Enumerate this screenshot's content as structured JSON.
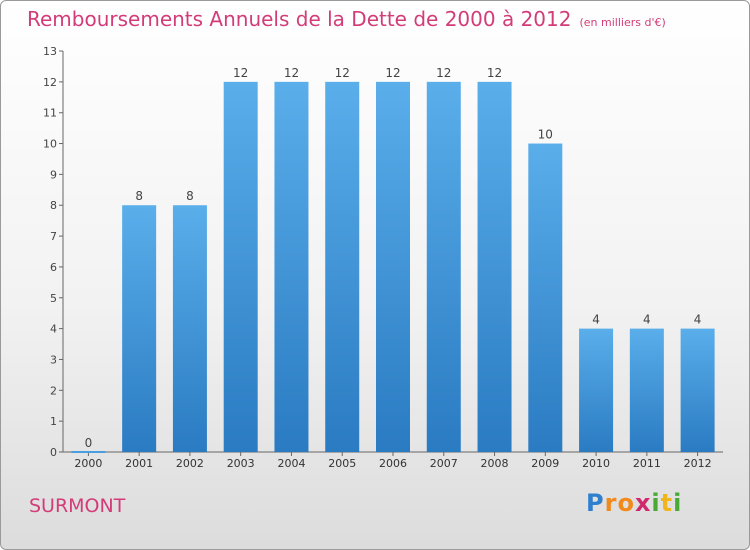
{
  "title": "Remboursements Annuels de la Dette de 2000 à 2012",
  "unit": "(en milliers d'€)",
  "commune": "SURMONT",
  "logo": {
    "text": "Proxiti",
    "letters": [
      "P",
      "r",
      "o",
      "x",
      "i",
      "t",
      "i"
    ],
    "colors": [
      "#2f7fcf",
      "#f08a1c",
      "#f08a1c",
      "#cf2a6e",
      "#48a934",
      "#f0b41c",
      "#48a934"
    ]
  },
  "chart_data": {
    "type": "bar",
    "categories": [
      "2000",
      "2001",
      "2002",
      "2003",
      "2004",
      "2005",
      "2006",
      "2007",
      "2008",
      "2009",
      "2010",
      "2011",
      "2012"
    ],
    "values": [
      0,
      8,
      8,
      12,
      12,
      12,
      12,
      12,
      12,
      10,
      4,
      4,
      4
    ],
    "yticks": [
      "0",
      "1",
      "2",
      "3",
      "4",
      "5",
      "6",
      "7",
      "8",
      "9",
      "10",
      "11",
      "12",
      "13"
    ],
    "ylim": [
      0,
      13
    ],
    "grid": false,
    "bar_color": "#4a9ee0",
    "bar_color_dark": "#2a7bc2",
    "accent_color": "#d23c78"
  }
}
